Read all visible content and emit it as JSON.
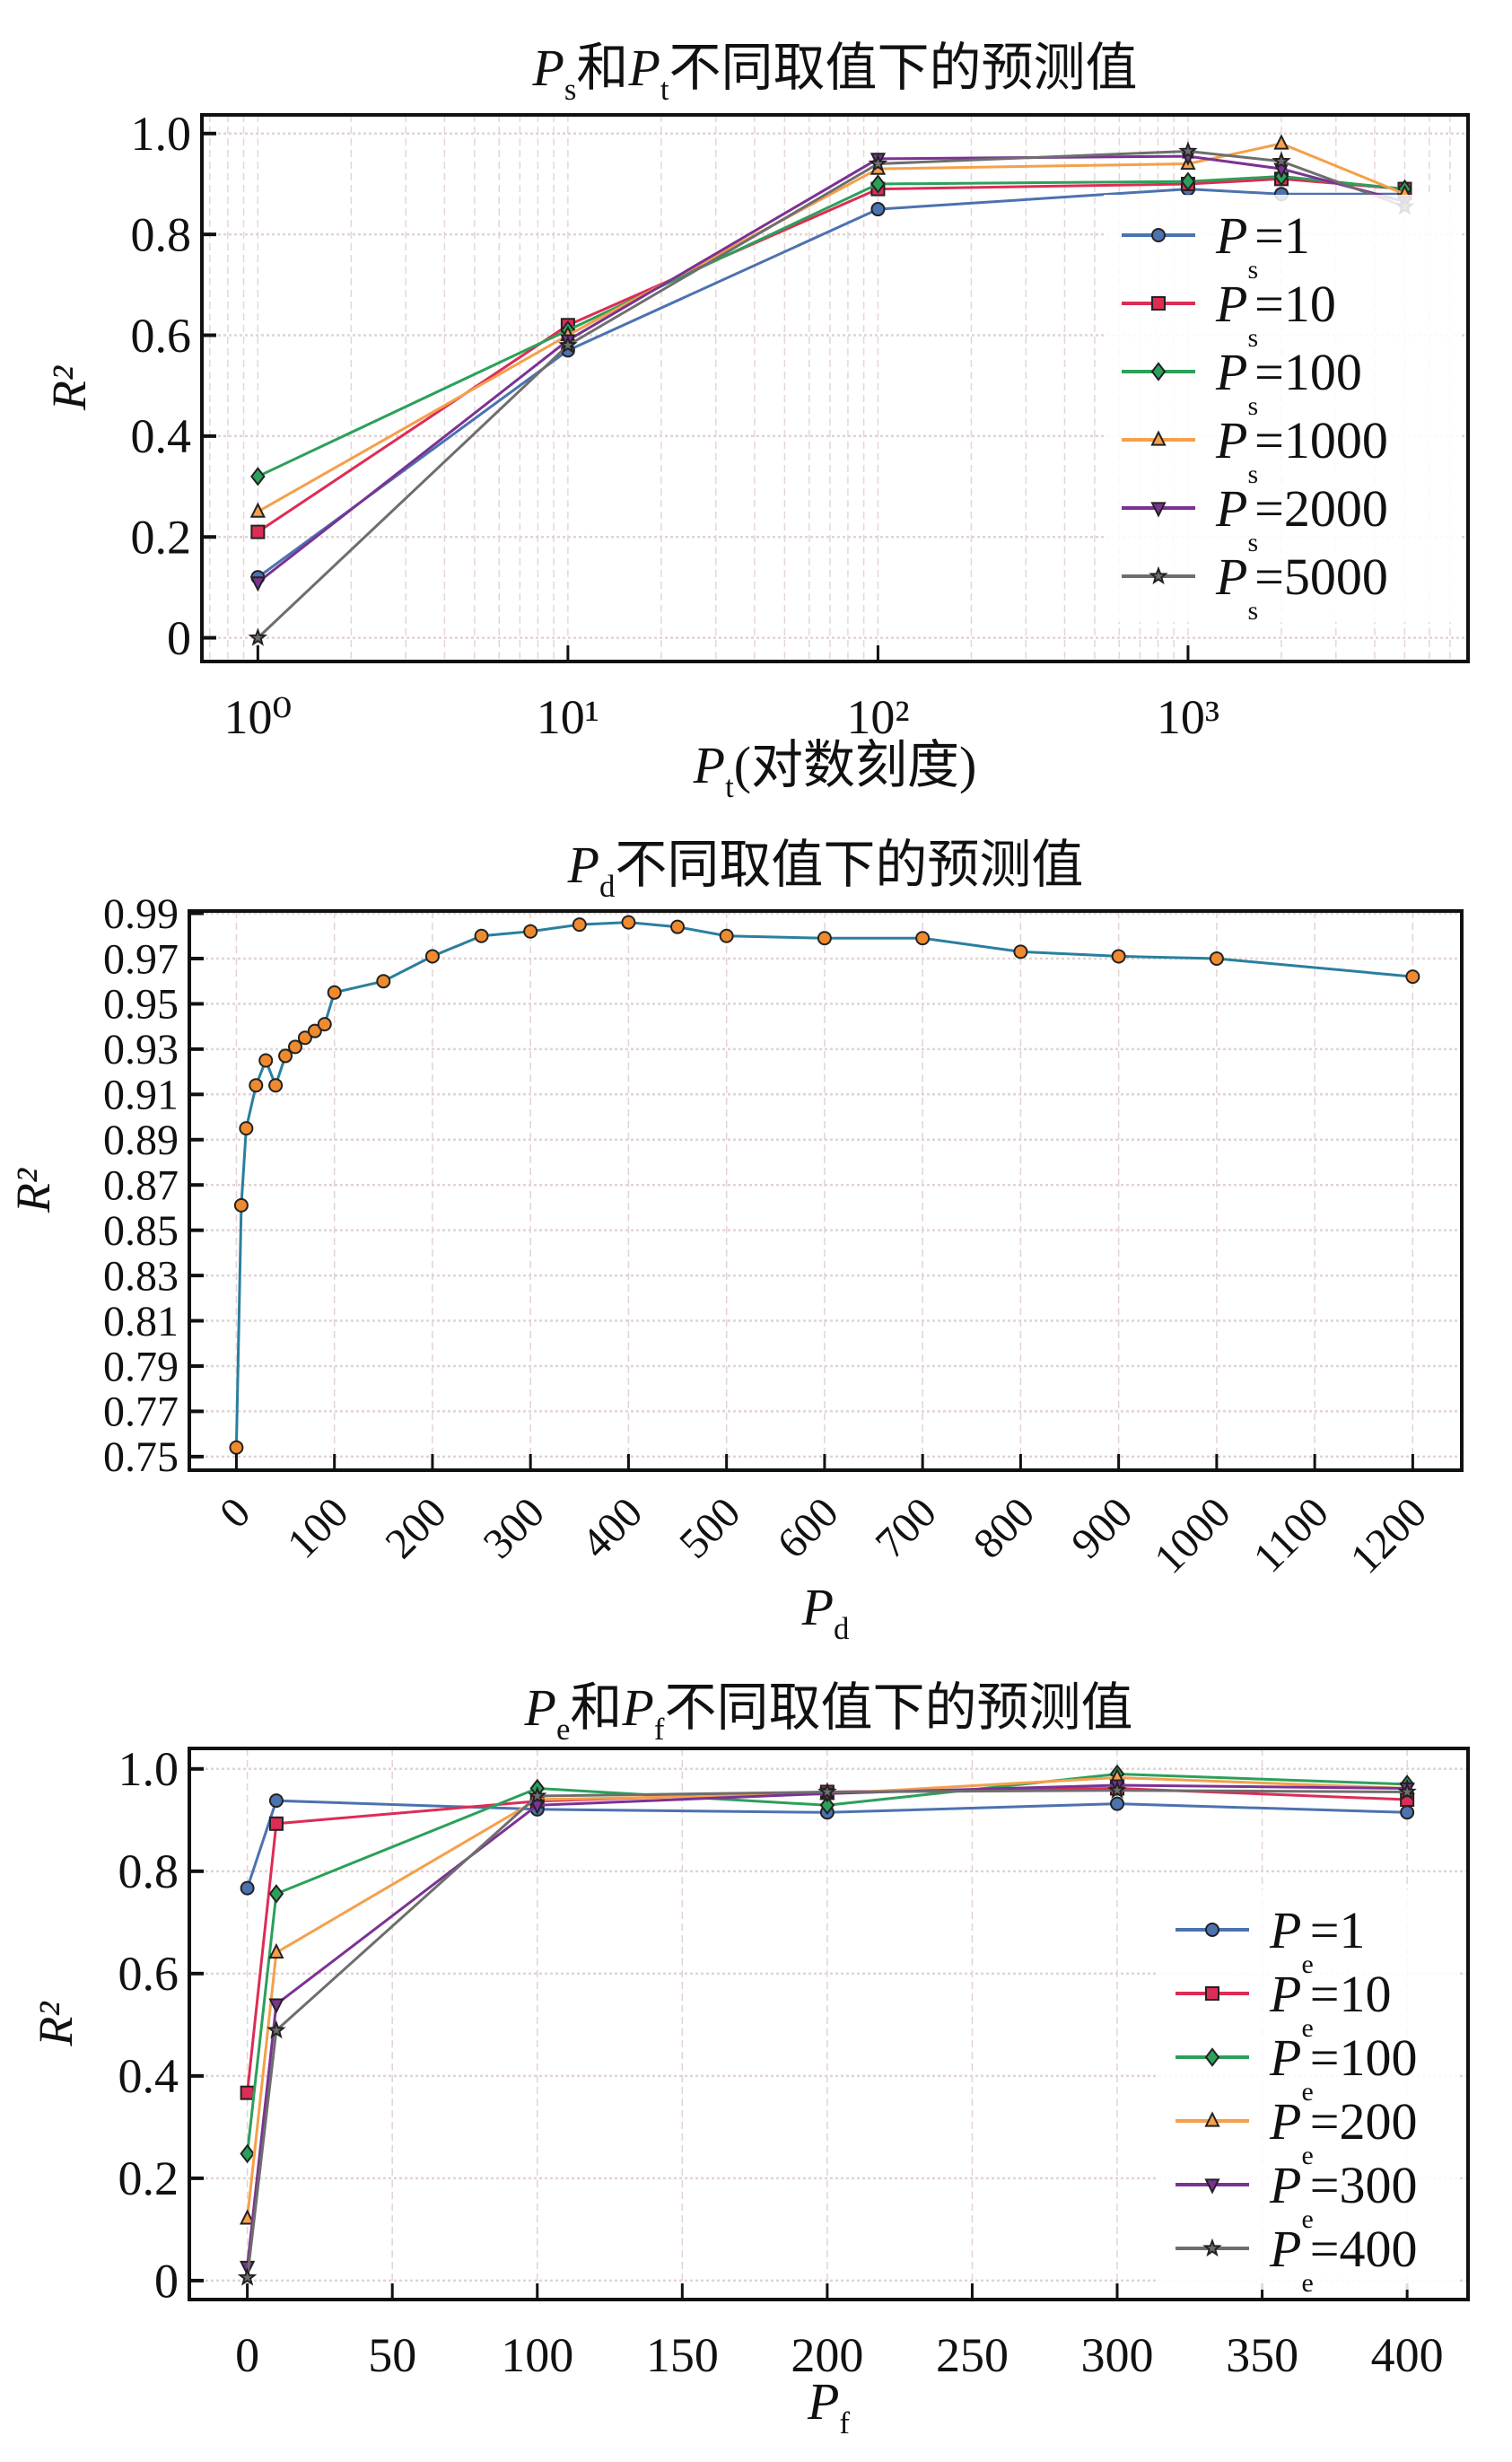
{
  "chart_data": [
    {
      "type": "line",
      "title_parts": [
        {
          "text": "P",
          "style": "italic"
        },
        {
          "text": "s",
          "style": "sub"
        },
        {
          "text": "和",
          "style": "normal"
        },
        {
          "text": "P",
          "style": "italic"
        },
        {
          "text": "t",
          "style": "sub"
        },
        {
          "text": "不同取值下的预测值",
          "style": "normal"
        }
      ],
      "xlabel_parts": [
        {
          "text": "P",
          "style": "italic"
        },
        {
          "text": "t",
          "style": "sub"
        },
        {
          "text": "(对数刻度)",
          "style": "normal"
        }
      ],
      "ylabel": "R²",
      "xscale": "log",
      "xlim": [
        0.66,
        8000
      ],
      "ylim": [
        -0.047,
        1.037
      ],
      "xticks": [
        1,
        10,
        100,
        1000
      ],
      "xtick_labels": [
        "10⁰",
        "10¹",
        "10²",
        "10³"
      ],
      "yticks": [
        0,
        0.2,
        0.4,
        0.6,
        0.8,
        1.0
      ],
      "ytick_labels": [
        "0",
        "0.2",
        "0.4",
        "0.6",
        "0.8",
        "1.0"
      ],
      "grid": true,
      "legend_placement": "center-right",
      "x": [
        1,
        10,
        100,
        1000,
        2000,
        5000
      ],
      "series": [
        {
          "name": "P_s=1",
          "legend_var": "P",
          "legend_sub": "s",
          "legend_val": "=1",
          "color": "#4c72b0",
          "marker": "circle",
          "values": [
            0.12,
            0.57,
            0.85,
            0.89,
            0.88,
            0.88
          ]
        },
        {
          "name": "P_s=10",
          "legend_var": "P",
          "legend_sub": "s",
          "legend_val": "=10",
          "color": "#dd2c55",
          "marker": "square",
          "values": [
            0.21,
            0.62,
            0.89,
            0.9,
            0.91,
            0.89
          ]
        },
        {
          "name": "P_s=100",
          "legend_var": "P",
          "legend_sub": "s",
          "legend_val": "=100",
          "color": "#2ca05a",
          "marker": "diamond",
          "values": [
            0.32,
            0.61,
            0.9,
            0.905,
            0.915,
            0.89
          ]
        },
        {
          "name": "P_s=1000",
          "legend_var": "P",
          "legend_sub": "s",
          "legend_val": "=1000",
          "color": "#f5a04a",
          "marker": "triangle-up",
          "values": [
            0.25,
            0.6,
            0.93,
            0.94,
            0.98,
            0.88
          ]
        },
        {
          "name": "P_s=2000",
          "legend_var": "P",
          "legend_sub": "s",
          "legend_val": "=2000",
          "color": "#7b3294",
          "marker": "triangle-down",
          "values": [
            0.11,
            0.59,
            0.95,
            0.955,
            0.93,
            0.865
          ]
        },
        {
          "name": "P_s=5000",
          "legend_var": "P",
          "legend_sub": "s",
          "legend_val": "=5000",
          "color": "#6e6e6e",
          "marker": "star",
          "values": [
            0.0,
            0.58,
            0.94,
            0.965,
            0.945,
            0.855
          ]
        }
      ]
    },
    {
      "type": "line",
      "title_parts": [
        {
          "text": "P",
          "style": "italic"
        },
        {
          "text": "d",
          "style": "sub"
        },
        {
          "text": "不同取值下的预测值",
          "style": "normal"
        }
      ],
      "xlabel_parts": [
        {
          "text": "P",
          "style": "italic"
        },
        {
          "text": "d",
          "style": "sub"
        }
      ],
      "ylabel": "R²",
      "xscale": "linear",
      "xlim": [
        -48,
        1250
      ],
      "ylim": [
        0.744,
        0.991
      ],
      "xticks": [
        0,
        100,
        200,
        300,
        400,
        500,
        600,
        700,
        800,
        900,
        1000,
        1100,
        1200
      ],
      "xtick_labels": [
        "0",
        "100",
        "200",
        "300",
        "400",
        "500",
        "600",
        "700",
        "800",
        "900",
        "1000",
        "1100",
        "1200"
      ],
      "yticks": [
        0.75,
        0.77,
        0.79,
        0.81,
        0.83,
        0.85,
        0.87,
        0.89,
        0.91,
        0.93,
        0.95,
        0.97,
        0.99
      ],
      "ytick_labels": [
        "0.75",
        "0.77",
        "0.79",
        "0.81",
        "0.83",
        "0.85",
        "0.87",
        "0.89",
        "0.91",
        "0.93",
        "0.95",
        "0.97",
        "0.99"
      ],
      "grid": true,
      "x": [
        0,
        5,
        10,
        20,
        30,
        40,
        50,
        60,
        70,
        80,
        90,
        100,
        150,
        200,
        250,
        300,
        350,
        400,
        450,
        500,
        600,
        700,
        800,
        900,
        1000,
        1200
      ],
      "series": [
        {
          "color": "#2a7f9e",
          "marker_fill": "#f08a2e",
          "marker": "circle",
          "values": [
            0.754,
            0.861,
            0.895,
            0.914,
            0.925,
            0.914,
            0.927,
            0.931,
            0.935,
            0.938,
            0.941,
            0.955,
            0.96,
            0.971,
            0.98,
            0.982,
            0.985,
            0.986,
            0.984,
            0.98,
            0.979,
            0.979,
            0.973,
            0.971,
            0.97,
            0.962
          ]
        }
      ]
    },
    {
      "type": "line",
      "title_parts": [
        {
          "text": "P",
          "style": "italic"
        },
        {
          "text": "e",
          "style": "sub"
        },
        {
          "text": "和",
          "style": "normal"
        },
        {
          "text": "P",
          "style": "italic"
        },
        {
          "text": "f",
          "style": "sub"
        },
        {
          "text": "不同取值下的预测值",
          "style": "normal"
        }
      ],
      "xlabel_parts": [
        {
          "text": "P",
          "style": "italic"
        },
        {
          "text": "f",
          "style": "sub"
        }
      ],
      "ylabel": "R²",
      "xscale": "linear",
      "xlim": [
        -20,
        421
      ],
      "ylim": [
        -0.037,
        1.04
      ],
      "xticks": [
        0,
        50,
        100,
        150,
        200,
        250,
        300,
        350,
        400
      ],
      "xtick_labels": [
        "0",
        "50",
        "100",
        "150",
        "200",
        "250",
        "300",
        "350",
        "400"
      ],
      "yticks": [
        0,
        0.2,
        0.4,
        0.6,
        0.8,
        1.0
      ],
      "ytick_labels": [
        "0",
        "0.2",
        "0.4",
        "0.6",
        "0.8",
        "1.0"
      ],
      "grid": true,
      "legend_placement": "lower-right",
      "x": [
        0,
        10,
        100,
        200,
        300,
        400
      ],
      "series": [
        {
          "name": "P_e=1",
          "legend_var": "P",
          "legend_sub": "e",
          "legend_val": "=1",
          "color": "#4c72b0",
          "marker": "circle",
          "values": [
            0.767,
            0.938,
            0.921,
            0.915,
            0.932,
            0.915
          ]
        },
        {
          "name": "P_e=10",
          "legend_var": "P",
          "legend_sub": "e",
          "legend_val": "=10",
          "color": "#dd2c55",
          "marker": "square",
          "values": [
            0.367,
            0.893,
            0.937,
            0.955,
            0.962,
            0.94
          ]
        },
        {
          "name": "P_e=100",
          "legend_var": "P",
          "legend_sub": "e",
          "legend_val": "=100",
          "color": "#2ca05a",
          "marker": "diamond",
          "values": [
            0.248,
            0.756,
            0.962,
            0.929,
            0.99,
            0.97
          ]
        },
        {
          "name": "P_e=200",
          "legend_var": "P",
          "legend_sub": "e",
          "legend_val": "=200",
          "color": "#f5a04a",
          "marker": "triangle-up",
          "values": [
            0.121,
            0.641,
            0.94,
            0.951,
            0.983,
            0.962
          ]
        },
        {
          "name": "P_e=300",
          "legend_var": "P",
          "legend_sub": "e",
          "legend_val": "=300",
          "color": "#7b3294",
          "marker": "triangle-down",
          "values": [
            0.027,
            0.54,
            0.929,
            0.952,
            0.968,
            0.962
          ]
        },
        {
          "name": "P_e=400",
          "legend_var": "P",
          "legend_sub": "e",
          "legend_val": "=400",
          "color": "#6e6e6e",
          "marker": "star",
          "values": [
            0.006,
            0.489,
            0.947,
            0.955,
            0.958,
            0.955
          ]
        }
      ]
    }
  ]
}
